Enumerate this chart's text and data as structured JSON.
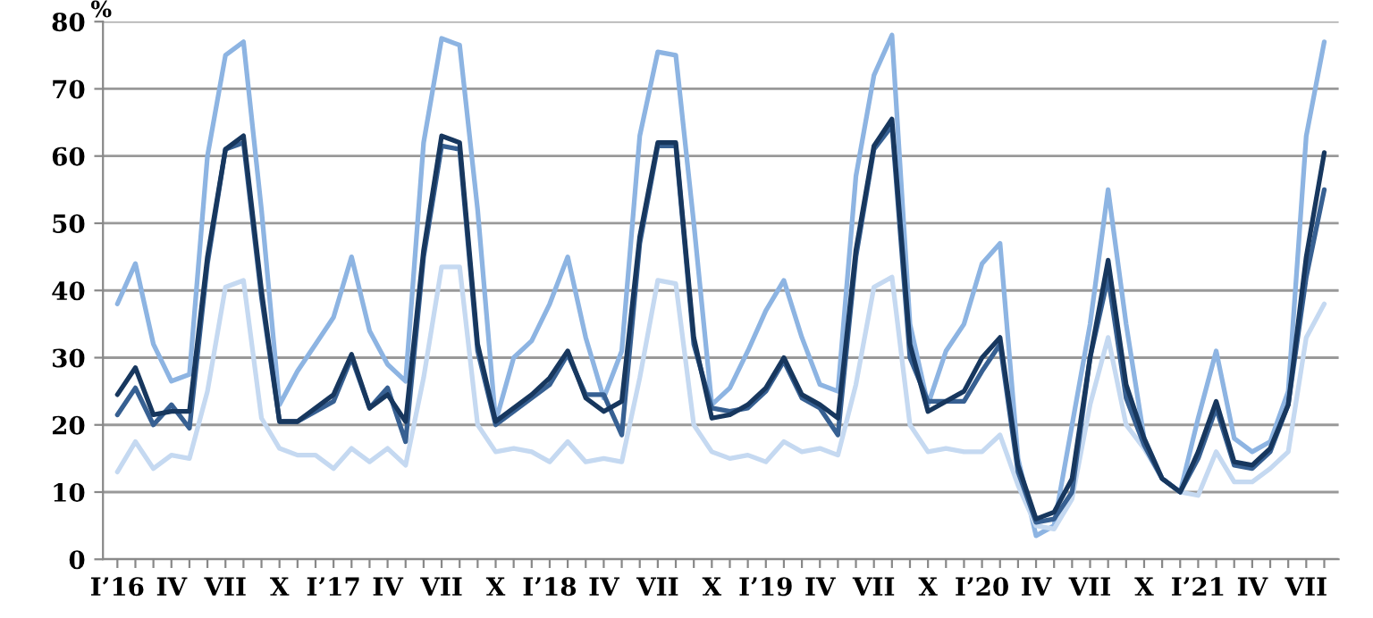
{
  "chart_data": {
    "type": "line",
    "ylabel": "%",
    "categories": [
      "I’16",
      null,
      null,
      "IV",
      null,
      null,
      "VII",
      null,
      null,
      "X",
      null,
      null,
      "I’17",
      null,
      null,
      "IV",
      null,
      null,
      "VII",
      null,
      null,
      "X",
      null,
      null,
      "I’18",
      null,
      null,
      "IV",
      null,
      null,
      "VII",
      null,
      null,
      "X",
      null,
      null,
      "I’19",
      null,
      null,
      "IV",
      null,
      null,
      "VII",
      null,
      null,
      "X",
      null,
      null,
      "I’20",
      null,
      null,
      "IV",
      null,
      null,
      "VII",
      null,
      null,
      "X",
      null,
      null,
      "I’21",
      null,
      null,
      "IV",
      null,
      null,
      "VII",
      null
    ],
    "series": [
      {
        "color": "#8db4e2",
        "values": [
          38,
          44,
          32,
          26.5,
          27.5,
          60,
          75,
          77,
          52,
          23,
          28,
          32,
          36,
          45,
          34,
          29,
          26.5,
          62,
          77.5,
          76.5,
          52,
          20.5,
          30,
          32.5,
          38,
          45,
          33,
          24,
          31,
          63,
          75.5,
          75,
          50,
          23,
          25.5,
          31,
          37,
          41.5,
          33,
          26,
          25,
          57,
          72,
          78,
          35,
          23,
          31,
          35,
          44,
          47,
          15,
          3.5,
          5,
          20,
          35,
          55,
          35,
          18,
          12,
          10,
          21,
          31,
          18,
          16,
          17.5,
          25,
          63,
          77
        ]
      },
      {
        "color": "#c5d9f1",
        "values": [
          13,
          17.5,
          13.5,
          15.5,
          15,
          25,
          40.5,
          41.5,
          21,
          16.5,
          15.5,
          15.5,
          13.5,
          16.5,
          14.5,
          16.5,
          14,
          27,
          43.5,
          43.5,
          20,
          16,
          16.5,
          16,
          14.5,
          17.5,
          14.5,
          15,
          14.5,
          27,
          41.5,
          41,
          20,
          16,
          15,
          15.5,
          14.5,
          17.5,
          16,
          16.5,
          15.5,
          26,
          40.5,
          42,
          20,
          16,
          16.5,
          16,
          16,
          18.5,
          11,
          5,
          4.5,
          9,
          23,
          33,
          20,
          16.5,
          12,
          10,
          9.5,
          16,
          11.5,
          11.5,
          13.5,
          16,
          33,
          38
        ]
      },
      {
        "color": "#376092",
        "values": [
          21.5,
          25.5,
          20,
          23,
          19.5,
          44,
          61,
          62,
          39,
          20.5,
          20.5,
          22,
          23.5,
          30,
          22.5,
          25.5,
          17.5,
          45,
          61.5,
          61,
          31,
          20,
          22,
          24,
          26,
          30.5,
          24.5,
          24.5,
          18.5,
          47,
          61.5,
          61.5,
          32,
          22.5,
          22,
          22.5,
          25,
          29.5,
          24,
          22.5,
          18.5,
          45,
          61,
          64.5,
          30,
          23.5,
          23.5,
          23.5,
          28,
          32,
          13,
          5.5,
          6,
          10,
          30,
          42,
          24,
          17,
          12,
          10,
          15,
          22.5,
          14,
          13.5,
          16,
          23,
          42,
          55
        ]
      },
      {
        "color": "#17375e",
        "values": [
          24.5,
          28.5,
          21.5,
          22,
          22,
          45,
          61,
          63,
          40,
          20.5,
          20.5,
          22.5,
          24.5,
          30.5,
          22.5,
          24.5,
          20.5,
          46,
          63,
          62,
          32,
          20.5,
          22.5,
          24.5,
          27,
          31,
          24,
          22,
          23.5,
          48,
          62,
          62,
          33,
          21,
          21.5,
          23,
          25.5,
          30,
          24.5,
          23,
          21,
          46,
          61.5,
          65.5,
          32,
          22,
          23.5,
          25,
          30,
          33,
          14,
          6,
          7,
          12,
          30,
          44.5,
          26,
          18,
          12,
          10,
          16,
          23.5,
          14.5,
          14,
          16.5,
          23,
          45,
          60.5
        ]
      }
    ],
    "ylim": [
      0,
      80
    ],
    "yticks": [
      0,
      10,
      20,
      30,
      40,
      50,
      60,
      70,
      80
    ],
    "grid": "y",
    "line_style": "solid",
    "marker": "none"
  }
}
